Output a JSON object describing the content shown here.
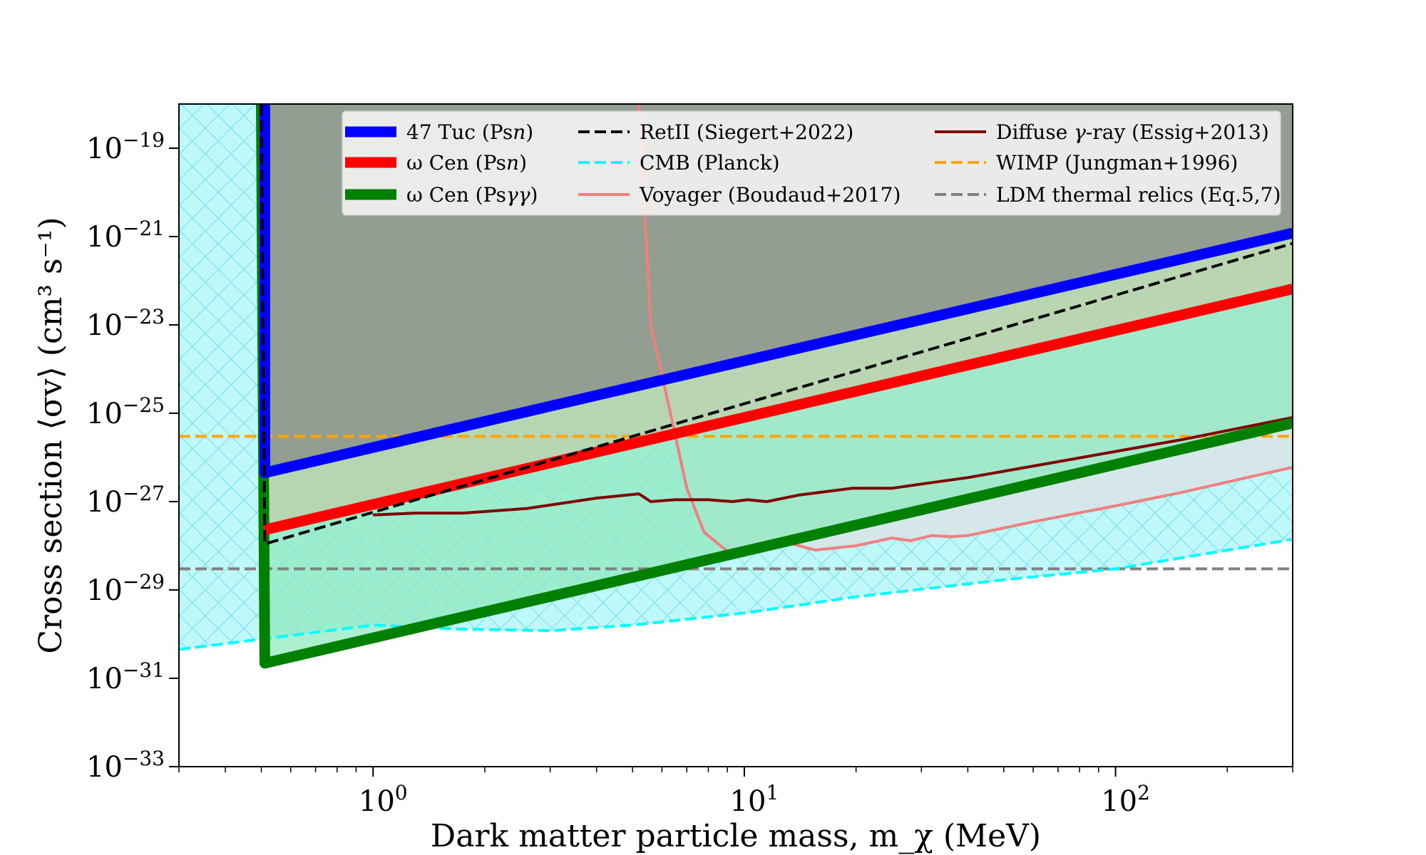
{
  "chart_data": {
    "type": "line",
    "xscale": "log",
    "yscale": "log",
    "xlim": [
      0.3,
      300
    ],
    "ylim": [
      1e-33,
      1e-18
    ],
    "xlabel": "Dark matter particle mass, m_χ (MeV)",
    "ylabel": "Cross section ⟨σv⟩  (cm³ s⁻¹)",
    "x_ticks": [
      {
        "value": 1,
        "label": "10^0"
      },
      {
        "value": 10,
        "label": "10^1"
      },
      {
        "value": 100,
        "label": "10^2"
      }
    ],
    "y_ticks": [
      {
        "value": 1e-33,
        "label": "10^−33"
      },
      {
        "value": 1e-31,
        "label": "10^−31"
      },
      {
        "value": 1e-29,
        "label": "10^−29"
      },
      {
        "value": 1e-27,
        "label": "10^−27"
      },
      {
        "value": 1e-25,
        "label": "10^−25"
      },
      {
        "value": 1e-23,
        "label": "10^−23"
      },
      {
        "value": 1e-21,
        "label": "10^−21"
      },
      {
        "value": 1e-19,
        "label": "10^−19"
      }
    ],
    "legend_position": "top-right",
    "series": [
      {
        "name": "47 Tuc (Psn)",
        "legend_prefix": "47 Tuc (Ps",
        "legend_italic": "n",
        "legend_suffix": ")",
        "color": "#0000ff",
        "style": "solid",
        "width": "thick",
        "x": [
          0.511,
          0.511,
          300
        ],
        "y": [
          1e-18,
          4.5e-27,
          1.2e-21
        ],
        "fill": "#808080"
      },
      {
        "name": "ω Cen (Psn)",
        "legend_prefix": "ω Cen (Ps",
        "legend_italic": "n",
        "legend_suffix": ")",
        "color": "#ff0000",
        "style": "solid",
        "width": "thick",
        "x": [
          0.511,
          300
        ],
        "y": [
          2.3e-28,
          6.5e-23
        ],
        "fill": "#c8c8a0"
      },
      {
        "name": "ω Cen (Psγγ)",
        "legend_prefix": "ω Cen (Ps",
        "legend_italic": "γγ",
        "legend_suffix": ")",
        "color": "#008000",
        "style": "solid",
        "width": "thick",
        "x": [
          0.5,
          0.505,
          0.511,
          300
        ],
        "y": [
          1e-18,
          1e-24,
          2.2e-31,
          6e-26
        ],
        "fill": "#90e8c0"
      },
      {
        "name": "RetII (Siegert+2022)",
        "color": "#000000",
        "style": "dashed",
        "width": "normal",
        "x": [
          0.5,
          0.505,
          0.511,
          300
        ],
        "y": [
          1e-18,
          1e-23,
          1.1e-28,
          7e-22
        ]
      },
      {
        "name": "CMB (Planck)",
        "color": "#00ffff",
        "style": "dashed",
        "width": "normal",
        "x": [
          0.3,
          1,
          1.7,
          3,
          5,
          10,
          20,
          50,
          100,
          300
        ],
        "y": [
          4.5e-31,
          1.6e-30,
          1.3e-30,
          1.2e-30,
          1.6e-30,
          3e-30,
          7e-30,
          1.7e-29,
          3e-29,
          1.4e-28
        ],
        "fill": "#bff8f8"
      },
      {
        "name": "Voyager (Boudaud+2017)",
        "color": "#f08080",
        "style": "solid",
        "width": "normal",
        "x": [
          5.2,
          5.6,
          6.1,
          7,
          7.8,
          9.1,
          10.5,
          13.5,
          15.5,
          20,
          25,
          28,
          32,
          36,
          40,
          60,
          100,
          150,
          300
        ],
        "y": [
          1e-18,
          1e-23,
          4e-25,
          2e-27,
          2e-28,
          7e-29,
          8e-29,
          1.1e-28,
          8e-29,
          1e-28,
          1.5e-28,
          1.3e-28,
          1.7e-28,
          1.6e-28,
          1.7e-28,
          3.5e-28,
          8e-28,
          1.6e-27,
          6e-27
        ],
        "fill": "#d8e4e8"
      },
      {
        "name": "Diffuse γ-ray (Essig+2013)",
        "legend_prefix": "Diffuse ",
        "legend_italic": "γ",
        "legend_suffix": "-ray (Essig+2013)",
        "color": "#800000",
        "style": "solid",
        "width": "normal",
        "x": [
          1,
          1.3,
          1.75,
          2.6,
          4,
          5.2,
          5.6,
          6.5,
          8,
          9.3,
          10.2,
          11.5,
          14,
          19.5,
          25,
          30,
          40,
          70,
          150,
          300
        ],
        "y": [
          5e-28,
          5.5e-28,
          5.5e-28,
          7e-28,
          1.2e-27,
          1.5e-27,
          1e-27,
          1.1e-27,
          1.1e-27,
          1e-27,
          1.1e-27,
          1e-27,
          1.4e-27,
          2e-27,
          2e-27,
          2.5e-27,
          3.5e-27,
          8e-27,
          2.5e-26,
          8e-26
        ]
      },
      {
        "name": "WIMP (Jungman+1996)",
        "color": "#ffa500",
        "style": "dashed",
        "width": "normal",
        "x": [
          0.3,
          300
        ],
        "y": [
          3e-26,
          3e-26
        ]
      },
      {
        "name": "LDM thermal relics (Eq.5,7)",
        "color": "#808080",
        "style": "dashed",
        "width": "normal",
        "x": [
          0.3,
          300
        ],
        "y": [
          3e-29,
          3e-29
        ]
      }
    ]
  }
}
